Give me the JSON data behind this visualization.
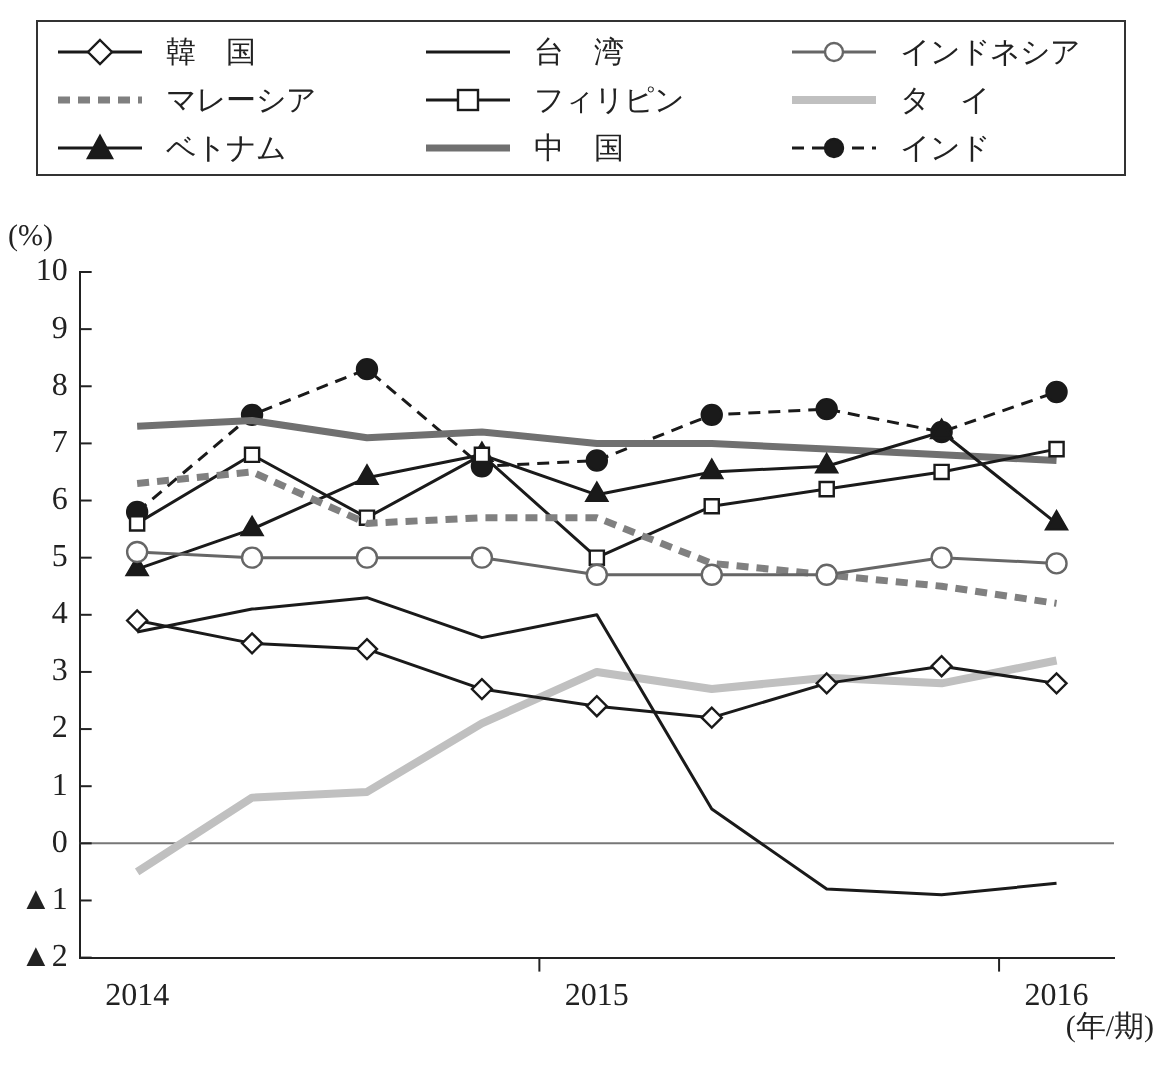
{
  "chart_data": {
    "type": "line",
    "ylabel": "(%)",
    "xlabel": "(年/期)",
    "categories": [
      "2014",
      null,
      null,
      null,
      "2015",
      null,
      null,
      null,
      "2016"
    ],
    "ylim": [
      -2,
      10
    ],
    "yticks": [
      {
        "value": -2,
        "label": "▲2"
      },
      {
        "value": -1,
        "label": "▲1"
      },
      0,
      1,
      2,
      3,
      4,
      5,
      6,
      7,
      8,
      9,
      10
    ],
    "grid": false,
    "legend": "top",
    "ref_lines": [
      {
        "axis": "y",
        "value": 0,
        "label": null,
        "color": "#777777"
      }
    ],
    "series": [
      {
        "name": "韓　国",
        "color": "#1a1a1a",
        "marker": "diamond",
        "line_style": "solid",
        "values": [
          3.9,
          3.5,
          3.4,
          2.7,
          2.4,
          2.2,
          2.8,
          3.1,
          2.8
        ]
      },
      {
        "name": "台　湾",
        "color": "#1a1a1a",
        "marker": "none",
        "line_style": "solid",
        "values": [
          3.7,
          4.1,
          4.3,
          3.6,
          4.0,
          0.6,
          -0.8,
          -0.9,
          -0.7
        ]
      },
      {
        "name": "インドネシア",
        "color": "#666666",
        "marker": "circle",
        "line_style": "solid",
        "values": [
          5.1,
          5.0,
          5.0,
          5.0,
          4.7,
          4.7,
          4.7,
          5.0,
          4.9
        ]
      },
      {
        "name": "マレーシア",
        "color": "#808080",
        "marker": "none",
        "line_style": "dashed",
        "values": [
          6.3,
          6.5,
          5.6,
          5.7,
          5.7,
          4.9,
          4.7,
          4.5,
          4.2
        ]
      },
      {
        "name": "フィリピン",
        "color": "#1a1a1a",
        "marker": "square",
        "line_style": "solid",
        "values": [
          5.6,
          6.8,
          5.7,
          6.8,
          5.0,
          5.9,
          6.2,
          6.5,
          6.9
        ]
      },
      {
        "name": "タ　イ",
        "color": "#c0c0c0",
        "marker": "none",
        "line_style": "solid",
        "values": [
          -0.5,
          0.8,
          0.9,
          2.1,
          3.0,
          2.7,
          2.9,
          2.8,
          3.2
        ]
      },
      {
        "name": "ベトナム",
        "color": "#1a1a1a",
        "marker": "triangle",
        "line_style": "solid",
        "values": [
          4.8,
          5.5,
          6.4,
          6.8,
          6.1,
          6.5,
          6.6,
          7.2,
          5.6
        ]
      },
      {
        "name": "中　国",
        "color": "#707070",
        "marker": "none",
        "line_style": "solid",
        "values": [
          7.3,
          7.4,
          7.1,
          7.2,
          7.0,
          7.0,
          6.9,
          6.8,
          6.7
        ]
      },
      {
        "name": "インド",
        "color": "#1a1a1a",
        "marker": "circle",
        "line_style": "dashed",
        "values": [
          5.8,
          7.5,
          8.3,
          6.6,
          6.7,
          7.5,
          7.6,
          7.2,
          7.9
        ]
      }
    ]
  }
}
